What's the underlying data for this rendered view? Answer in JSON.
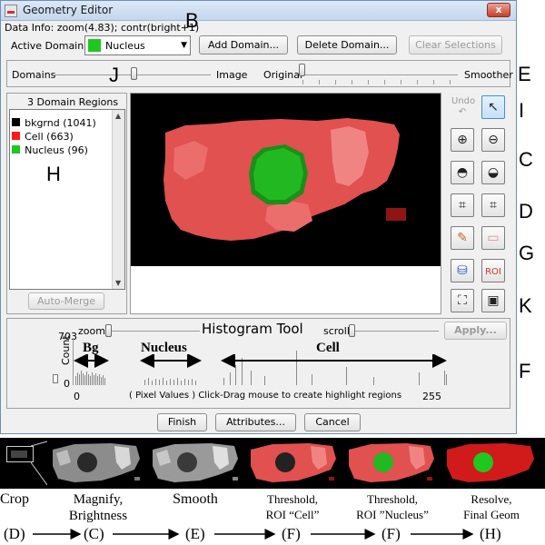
{
  "window": {
    "title": "Geometry Editor",
    "close_label": "x"
  },
  "data_info": "Data Info:  zoom(4.83); contr(bright+1)",
  "active_domain": {
    "label": "Active Domain:",
    "value": "Nucleus",
    "color": "#1ec81e"
  },
  "buttons": {
    "add_domain": "Add Domain...",
    "delete_domain": "Delete Domain...",
    "clear_selections": "Clear Selections",
    "auto_merge": "Auto-Merge",
    "apply": "Apply...",
    "finish": "Finish",
    "attributes": "Attributes...",
    "cancel": "Cancel"
  },
  "sliders": {
    "domains": "Domains",
    "image": "Image",
    "original": "Original",
    "smoother": "Smoother"
  },
  "regions": {
    "header": "3 Domain Regions",
    "items": [
      {
        "label": "bkgrnd (1041)",
        "color": "#000000"
      },
      {
        "label": "Cell (663)",
        "color": "#ff1a1a"
      },
      {
        "label": "Nucleus (96)",
        "color": "#1ec81e"
      }
    ]
  },
  "tools": {
    "undo": "Undo",
    "icons": [
      "select-arrow-icon",
      "zoom-in-icon",
      "zoom-out-icon",
      "brightness-up-icon",
      "brightness-down-icon",
      "crop-icon",
      "crop-auto-icon",
      "pencil-icon",
      "eraser-icon",
      "fill-bucket-icon",
      "roi-paint-icon",
      "fit-view-icon",
      "3d-view-icon"
    ]
  },
  "histogram": {
    "title": "Histogram Tool",
    "zoom_label": "zoom",
    "scroll_label": "scroll",
    "count_max": "703",
    "count_label": "Count",
    "count_min": "0",
    "x_min": "0",
    "x_max": "255",
    "x_caption": "( Pixel Values )  Click-Drag mouse to create highlight regions",
    "bg_label": "Bg",
    "nucleus_label": "Nucleus",
    "cell_label": "Cell"
  },
  "annotations": {
    "B": "B",
    "J": "J",
    "E": "E",
    "I": "I",
    "H": "H",
    "C": "C",
    "D": "D",
    "G": "G",
    "K": "K",
    "F": "F"
  },
  "steps": [
    {
      "label": "Crop",
      "code": "(D)"
    },
    {
      "label": "Magnify,\nBrightness",
      "code": "(C)"
    },
    {
      "label": "Smooth",
      "code": "(E)"
    },
    {
      "label": "Threshold,\nROI “Cell”",
      "code": "(F)"
    },
    {
      "label": "Threshold,\nROI ”Nucleus”",
      "code": "(F)"
    },
    {
      "label": "Resolve,\nFinal Geom",
      "code": "(H)"
    }
  ],
  "colors": {
    "cell": "#e0514f",
    "cell_light": "#f08482",
    "nucleus": "#22b822",
    "nucleus_dark": "#1a8f1a",
    "spot": "#8f1414"
  }
}
